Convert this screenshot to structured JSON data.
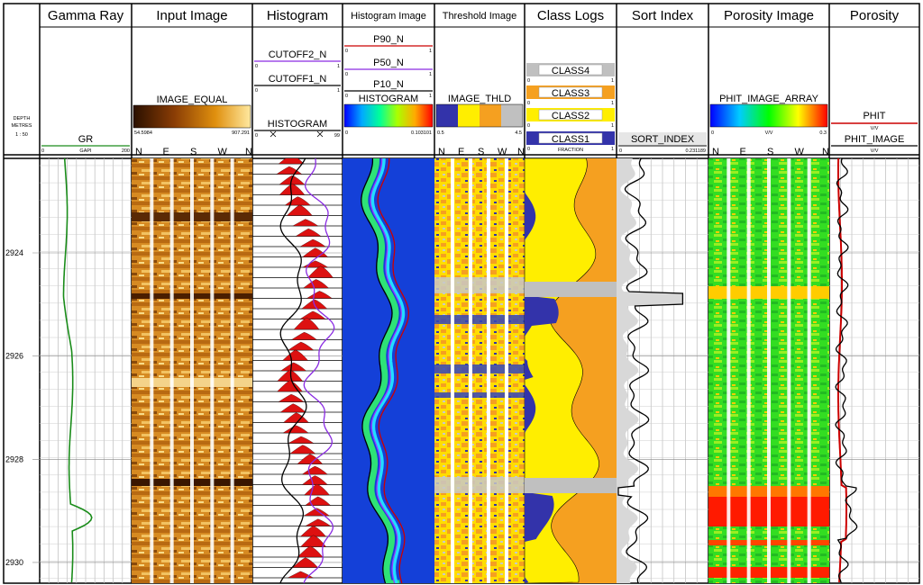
{
  "depth_header": {
    "label": "DEPTH",
    "unit": "METRES",
    "scale": "1 : 50"
  },
  "depth_ticks": [
    "2924",
    "2926",
    "2928",
    "2930"
  ],
  "depth_values": [
    2924,
    2926,
    2928,
    2930
  ],
  "tracks": {
    "gamma_ray": {
      "title": "Gamma Ray",
      "curve": {
        "name": "GR",
        "unit": "GAPI",
        "min": "0",
        "max": "200",
        "color": "#1a8c1a"
      }
    },
    "input_image": {
      "title": "Input Image",
      "curve": {
        "name": "IMAGE_EQUAL",
        "min": "54.5984",
        "max": "907.291"
      },
      "directions": [
        "N",
        "E",
        "S",
        "W",
        "N"
      ]
    },
    "histogram": {
      "title": "Histogram",
      "curves": [
        {
          "name": "CUTOFF2_N",
          "min": "0",
          "max": "1",
          "color": "#8a2be2"
        },
        {
          "name": "CUTOFF1_N",
          "min": "0",
          "max": "1",
          "color": "#000000"
        },
        {
          "name": "HISTOGRAM",
          "min": "0",
          "max": "99",
          "color": "#000000"
        }
      ]
    },
    "histogram_image": {
      "title": "Histogram Image",
      "curves": [
        {
          "name": "P90_N",
          "min": "0",
          "max": "1",
          "color": "#cc0000"
        },
        {
          "name": "P50_N",
          "min": "0",
          "max": "1",
          "color": "#8a2be2"
        },
        {
          "name": "P10_N",
          "min": "0",
          "max": "1",
          "color": "#000000"
        },
        {
          "name": "HISTOGRAM",
          "min": "0",
          "max": "0.103101",
          "color": "#000000"
        }
      ]
    },
    "threshold_image": {
      "title": "Threshold Image",
      "curve": {
        "name": "IMAGE_THLD",
        "min": "0.5",
        "max": "4.5"
      },
      "directions": [
        "N",
        "E",
        "S",
        "W",
        "N"
      ]
    },
    "class_logs": {
      "title": "Class Logs",
      "classes": [
        {
          "name": "CLASS4",
          "color": "#c0c0c0"
        },
        {
          "name": "CLASS3",
          "color": "#f5a020"
        },
        {
          "name": "CLASS2",
          "color": "#ffee00"
        },
        {
          "name": "CLASS1",
          "color": "#3333aa"
        }
      ],
      "unit": "FRACTION",
      "min": "0",
      "max": "1"
    },
    "sort_index": {
      "title": "Sort Index",
      "curve": {
        "name": "SORT_INDEX",
        "min": "0",
        "max": "0.231189"
      }
    },
    "porosity_image": {
      "title": "Porosity Image",
      "curve": {
        "name": "PHIT_IMAGE_ARRAY",
        "unit": "V/V",
        "min": "0",
        "max": "0.3"
      },
      "directions": [
        "N",
        "E",
        "S",
        "W",
        "N"
      ]
    },
    "porosity": {
      "title": "Porosity",
      "curves": [
        {
          "name": "PHIT",
          "unit": "V/V",
          "color": "#cc0000"
        },
        {
          "name": "PHIT_IMAGE",
          "unit": "V/V",
          "color": "#000000"
        }
      ]
    }
  }
}
